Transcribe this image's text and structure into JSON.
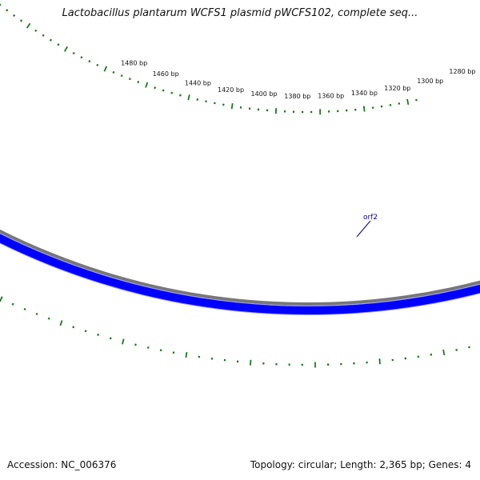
{
  "title": "Lactobacillus plantarum WCFS1 plasmid pWCFS102, complete seq...",
  "ticks": [
    {
      "bp": 1480,
      "label": "1480 bp"
    },
    {
      "bp": 1460,
      "label": "1460 bp"
    },
    {
      "bp": 1440,
      "label": "1440 bp"
    },
    {
      "bp": 1420,
      "label": "1420 bp"
    },
    {
      "bp": 1400,
      "label": "1400 bp"
    },
    {
      "bp": 1380,
      "label": "1380 bp"
    },
    {
      "bp": 1360,
      "label": "1360 bp"
    },
    {
      "bp": 1340,
      "label": "1340 bp"
    },
    {
      "bp": 1320,
      "label": "1320 bp"
    },
    {
      "bp": 1300,
      "label": "1300 bp"
    },
    {
      "bp": 1280,
      "label": "1280 bp"
    }
  ],
  "gene": {
    "label": "orf2",
    "color": "#0000ff",
    "outline_color": "#9999ff"
  },
  "colors": {
    "backbone": "#777777",
    "tick_ring": "#1a7a1a"
  },
  "footer": {
    "accession": "Accession: NC_006376",
    "summary": "Topology: circular; Length: 2,365 bp; Genes: 4"
  }
}
